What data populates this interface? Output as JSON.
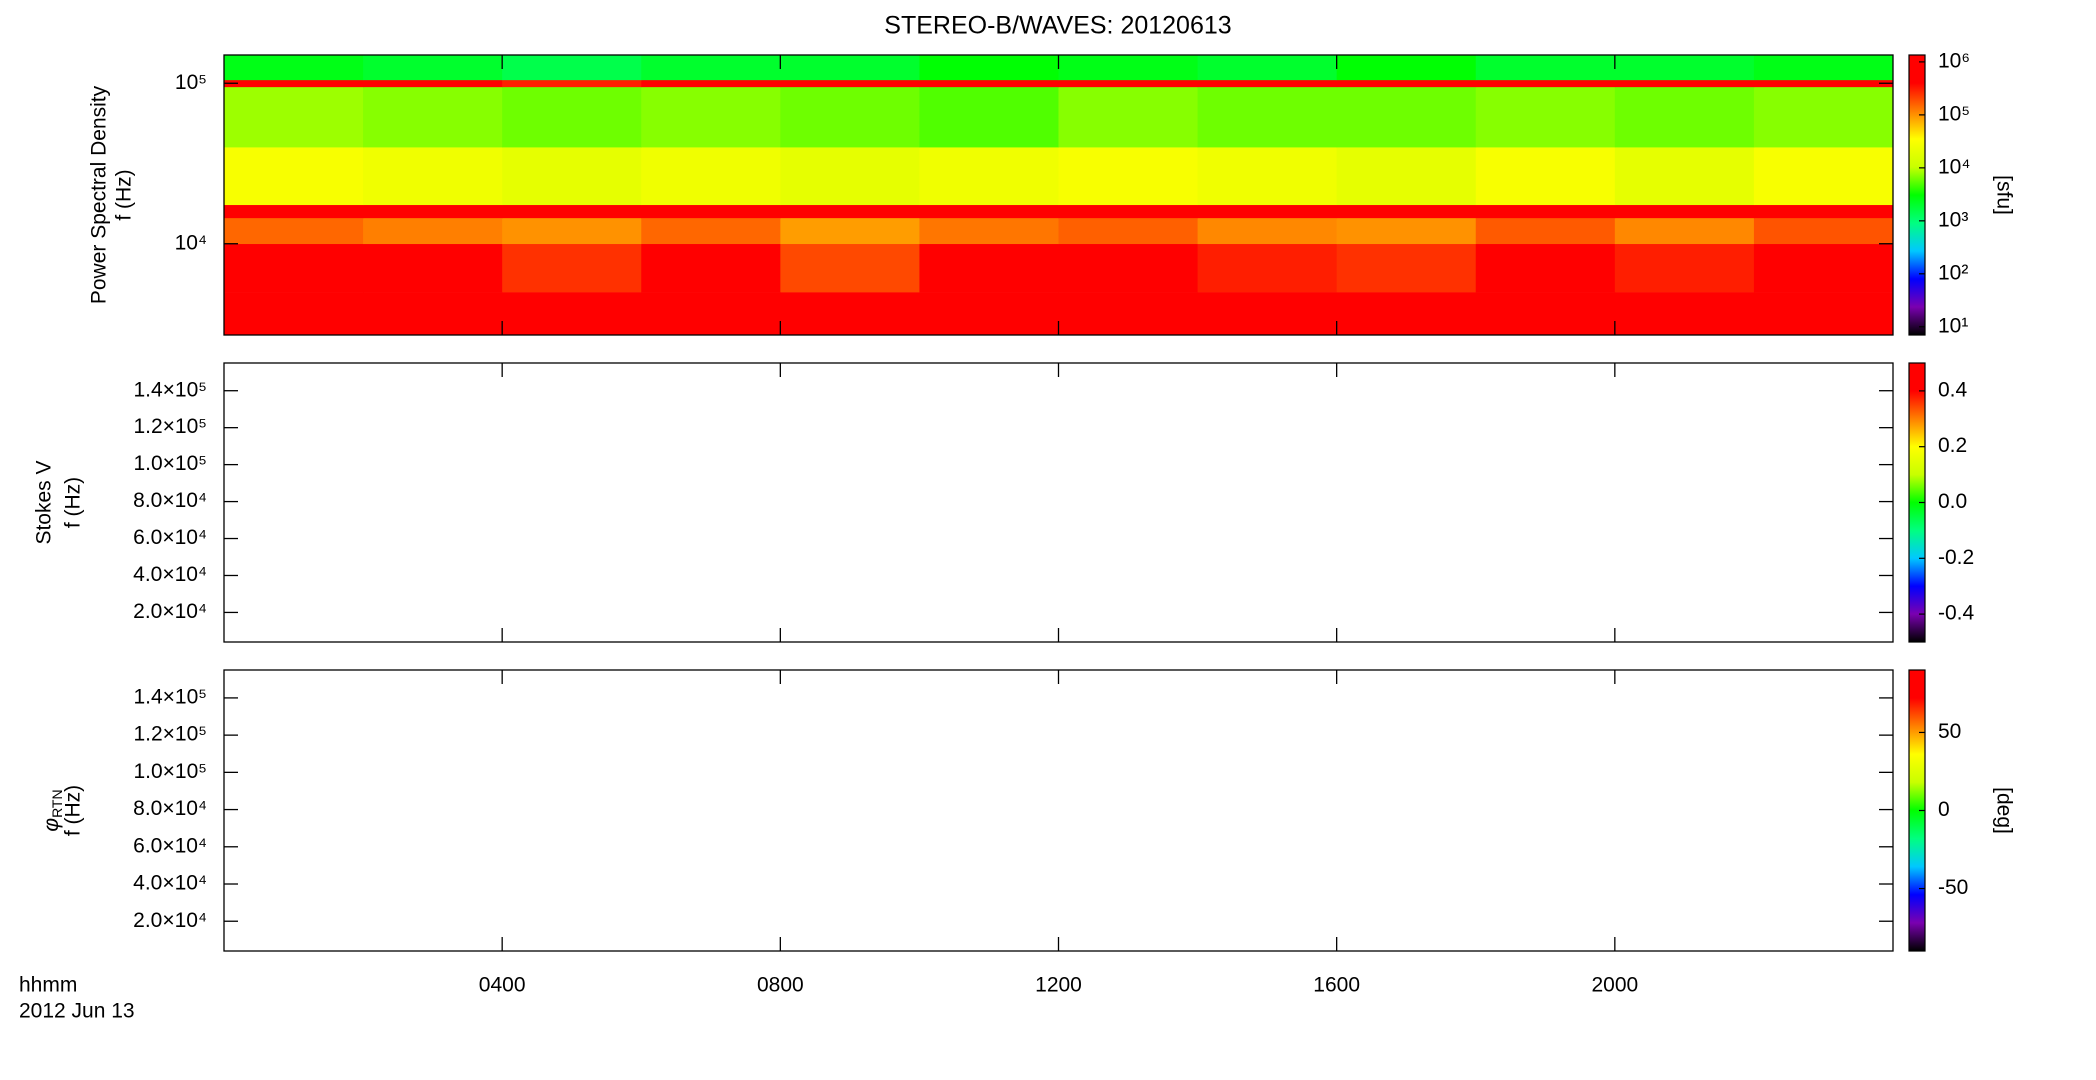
{
  "chart_data": {
    "type": "spectrogram",
    "title": "STEREO-B/WAVES: 20120613",
    "x_label": [
      "hhmm",
      "2012 Jun 13"
    ],
    "xlim": [
      0,
      24
    ],
    "xticks": [
      {
        "value": 4,
        "label": "0400"
      },
      {
        "value": 8,
        "label": "0800"
      },
      {
        "value": 12,
        "label": "1200"
      },
      {
        "value": 16,
        "label": "1600"
      },
      {
        "value": 20,
        "label": "2000"
      }
    ],
    "colors": [
      "#000000",
      "#7a00b0",
      "#0000ff",
      "#00c8ff",
      "#00ff80",
      "#00ff00",
      "#c8ff00",
      "#ffff00",
      "#ff8000",
      "#ff0000",
      "#ff0000"
    ],
    "panels": [
      {
        "ylabel": [
          "Power Spectral Density",
          "f (Hz)"
        ],
        "log": true,
        "ylim": [
          2700,
          150000
        ],
        "yticks": [
          {
            "value": 10000,
            "label": "10⁴"
          },
          {
            "value": 100000,
            "label": "10⁵"
          }
        ],
        "colorbar": {
          "label": "[sfu]",
          "log": true,
          "lim": [
            7,
            1350000
          ],
          "ticks": [
            {
              "value": 10,
              "label": "10¹"
            },
            {
              "value": 100,
              "label": "10²"
            },
            {
              "value": 1000,
              "label": "10³"
            },
            {
              "value": 10000,
              "label": "10⁴"
            },
            {
              "value": 100000,
              "label": "10⁵"
            },
            {
              "value": 1000000,
              "label": "10⁶"
            }
          ]
        },
        "time_edges": [
          0,
          2,
          4,
          6,
          8,
          10,
          12,
          14,
          16,
          18,
          20,
          22,
          24
        ],
        "freq_edges": [
          2700,
          5000,
          10000,
          14500,
          17500,
          40000,
          95000,
          105000,
          150000
        ],
        "power": [
          [
            1000000,
            800000,
            600000,
            1000000,
            500000,
            900000,
            1000000,
            700000,
            600000,
            1000000,
            800000,
            1000000
          ],
          [
            500000,
            400000,
            250000,
            500000,
            200000,
            400000,
            500000,
            300000,
            250000,
            500000,
            300000,
            600000
          ],
          [
            150000,
            120000,
            100000,
            150000,
            90000,
            130000,
            160000,
            110000,
            100000,
            170000,
            110000,
            180000
          ],
          [
            900000,
            900000,
            1000000,
            900000,
            900000,
            1000000,
            900000,
            900000,
            900000,
            1000000,
            900000,
            900000
          ],
          [
            30000,
            25000,
            20000,
            25000,
            20000,
            25000,
            30000,
            25000,
            20000,
            30000,
            20000,
            30000
          ],
          [
            8000,
            7000,
            6000,
            7000,
            6000,
            5000,
            7000,
            6000,
            6000,
            7000,
            6000,
            7000
          ],
          [
            400000,
            400000,
            300000,
            400000,
            400000,
            400000,
            400000,
            400000,
            400000,
            400000,
            400000,
            400000
          ],
          [
            2500,
            2000,
            1500,
            2000,
            2000,
            3000,
            2500,
            2000,
            3000,
            2000,
            2000,
            2500
          ]
        ]
      },
      {
        "ylabel": [
          "Stokes V",
          "f (Hz)"
        ],
        "log": false,
        "ylim": [
          4000,
          155000
        ],
        "yticks": [
          {
            "value": 20000,
            "label": "2.0×10⁴"
          },
          {
            "value": 40000,
            "label": "4.0×10⁴"
          },
          {
            "value": 60000,
            "label": "6.0×10⁴"
          },
          {
            "value": 80000,
            "label": "8.0×10⁴"
          },
          {
            "value": 100000,
            "label": "1.0×10⁵"
          },
          {
            "value": 120000,
            "label": "1.2×10⁵"
          },
          {
            "value": 140000,
            "label": "1.4×10⁵"
          }
        ],
        "colorbar": {
          "log": false,
          "lim": [
            -0.5,
            0.5
          ],
          "ticks": [
            -0.4,
            -0.2,
            {
              "value": 0,
              "label": "0.0"
            },
            0.2,
            0.4
          ]
        }
      },
      {
        "ylabel_symbol": "φ",
        "ylabel_subscript": "RTN",
        "ylabel": [
          "f (Hz)"
        ],
        "log": false,
        "ylim": [
          4000,
          155000
        ],
        "yticks": [
          {
            "value": 20000,
            "label": "2.0×10⁴"
          },
          {
            "value": 40000,
            "label": "4.0×10⁴"
          },
          {
            "value": 60000,
            "label": "6.0×10⁴"
          },
          {
            "value": 80000,
            "label": "8.0×10⁴"
          },
          {
            "value": 100000,
            "label": "1.0×10⁵"
          },
          {
            "value": 120000,
            "label": "1.2×10⁵"
          },
          {
            "value": 140000,
            "label": "1.4×10⁵"
          }
        ],
        "colorbar": {
          "label": "[deg]",
          "log": false,
          "lim": [
            -90,
            90
          ],
          "ticks": [
            -50,
            0,
            50
          ]
        }
      }
    ]
  }
}
